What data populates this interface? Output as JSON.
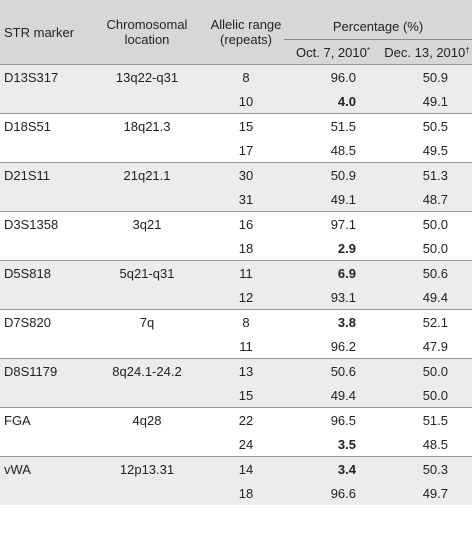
{
  "headers": {
    "marker": "STR marker",
    "location_line1": "Chromosomal",
    "location_line2": "location",
    "range_line1": "Allelic range",
    "range_line2": "(repeats)",
    "percentage": "Percentage (%)",
    "date1": "Oct. 7, 2010",
    "date1_mark": "*",
    "date2": "Dec. 13, 2010",
    "date2_mark": "†"
  },
  "rows": [
    {
      "marker": "D13S317",
      "location": "13q22-q31",
      "alleles": [
        {
          "range": "8",
          "oct": "96.0",
          "dec": "50.9",
          "bold": false
        },
        {
          "range": "10",
          "oct": "4.0",
          "dec": "49.1",
          "bold": true
        }
      ]
    },
    {
      "marker": "D18S51",
      "location": "18q21.3",
      "alleles": [
        {
          "range": "15",
          "oct": "51.5",
          "dec": "50.5",
          "bold": false
        },
        {
          "range": "17",
          "oct": "48.5",
          "dec": "49.5",
          "bold": false
        }
      ]
    },
    {
      "marker": "D21S11",
      "location": "21q21.1",
      "alleles": [
        {
          "range": "30",
          "oct": "50.9",
          "dec": "51.3",
          "bold": false
        },
        {
          "range": "31",
          "oct": "49.1",
          "dec": "48.7",
          "bold": false
        }
      ]
    },
    {
      "marker": "D3S1358",
      "location": "3q21",
      "alleles": [
        {
          "range": "16",
          "oct": "97.1",
          "dec": "50.0",
          "bold": false
        },
        {
          "range": "18",
          "oct": "2.9",
          "dec": "50.0",
          "bold": true
        }
      ]
    },
    {
      "marker": "D5S818",
      "location": "5q21-q31",
      "alleles": [
        {
          "range": "11",
          "oct": "6.9",
          "dec": "50.6",
          "bold": true
        },
        {
          "range": "12",
          "oct": "93.1",
          "dec": "49.4",
          "bold": false
        }
      ]
    },
    {
      "marker": "D7S820",
      "location": "7q",
      "alleles": [
        {
          "range": "8",
          "oct": "3.8",
          "dec": "52.1",
          "bold": true
        },
        {
          "range": "11",
          "oct": "96.2",
          "dec": "47.9",
          "bold": false
        }
      ]
    },
    {
      "marker": "D8S1179",
      "location": "8q24.1-24.2",
      "alleles": [
        {
          "range": "13",
          "oct": "50.6",
          "dec": "50.0",
          "bold": false
        },
        {
          "range": "15",
          "oct": "49.4",
          "dec": "50.0",
          "bold": false
        }
      ]
    },
    {
      "marker": "FGA",
      "location": "4q28",
      "alleles": [
        {
          "range": "22",
          "oct": "96.5",
          "dec": "51.5",
          "bold": false
        },
        {
          "range": "24",
          "oct": "3.5",
          "dec": "48.5",
          "bold": true
        }
      ]
    },
    {
      "marker": "vWA",
      "location": "12p13.31",
      "alleles": [
        {
          "range": "14",
          "oct": "3.4",
          "dec": "50.3",
          "bold": true
        },
        {
          "range": "18",
          "oct": "96.6",
          "dec": "49.7",
          "bold": false
        }
      ]
    }
  ]
}
